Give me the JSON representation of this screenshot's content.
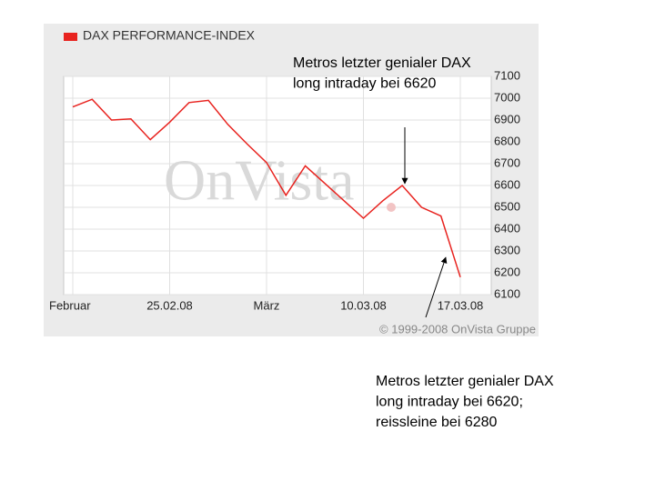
{
  "chart_data": {
    "type": "line",
    "legend": "DAX PERFORMANCE-INDEX",
    "watermark": "OnVista",
    "copyright": "© 1999-2008 OnVista Gruppe",
    "categories": [
      "Februar",
      null,
      null,
      null,
      null,
      "25.02.08",
      null,
      null,
      null,
      null,
      "März",
      null,
      null,
      null,
      null,
      "10.03.08",
      null,
      null,
      null,
      null,
      "17.03.08"
    ],
    "series": [
      {
        "name": "DAX PERFORMANCE-INDEX",
        "color": "#e8231f",
        "values": [
          6960,
          6995,
          6900,
          6905,
          6810,
          6890,
          6980,
          6990,
          6880,
          6790,
          6705,
          6555,
          6690,
          6610,
          6530,
          6450,
          6530,
          6600,
          6500,
          6460,
          6180
        ]
      }
    ],
    "ylim": [
      6100,
      7100
    ],
    "yticks": [
      6100,
      6200,
      6300,
      6400,
      6500,
      6600,
      6700,
      6800,
      6900,
      7000,
      7100
    ],
    "grid": true,
    "annotations": [
      {
        "lines": [
          "Metros letzter genialer DAX",
          "long intraday bei 6620"
        ]
      },
      {
        "lines": [
          "Metros letzter genialer DAX",
          "long intraday bei 6620;",
          "reissleine bei 6280"
        ]
      }
    ]
  }
}
